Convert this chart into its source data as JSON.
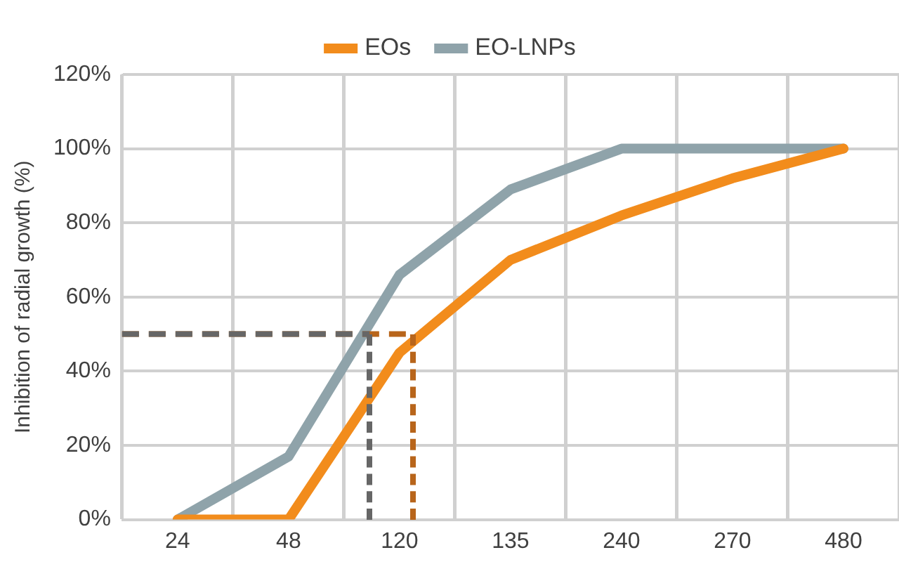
{
  "chart_data": {
    "type": "line",
    "ylabel": "Inhibition of radial growth (%)",
    "categories": [
      "24",
      "48",
      "120",
      "135",
      "240",
      "270",
      "480"
    ],
    "series": [
      {
        "name": "EOs",
        "color": "#f28c1c",
        "values": [
          0,
          0,
          45,
          70,
          82,
          92,
          100
        ]
      },
      {
        "name": "EO-LNPs",
        "color": "#8fa3aa",
        "values": [
          0,
          17,
          66,
          89,
          100,
          100,
          100
        ]
      }
    ],
    "ylim": [
      0,
      120
    ],
    "yticks": [
      {
        "value": 0,
        "label": "0%"
      },
      {
        "value": 20,
        "label": "20%"
      },
      {
        "value": 40,
        "label": "40%"
      },
      {
        "value": 60,
        "label": "60%"
      },
      {
        "value": 80,
        "label": "80%"
      },
      {
        "value": 100,
        "label": "100%"
      },
      {
        "value": 120,
        "label": "120%"
      }
    ],
    "ref_lines": [
      {
        "axis": "y",
        "value": 50,
        "color": "#b8651b",
        "line_style": "dashed"
      },
      {
        "axis": "y",
        "value": 50,
        "color": "#666666",
        "line_style": "dashed"
      }
    ],
    "grid": true,
    "legend": "top",
    "marker": "none",
    "line_style": "solid"
  }
}
